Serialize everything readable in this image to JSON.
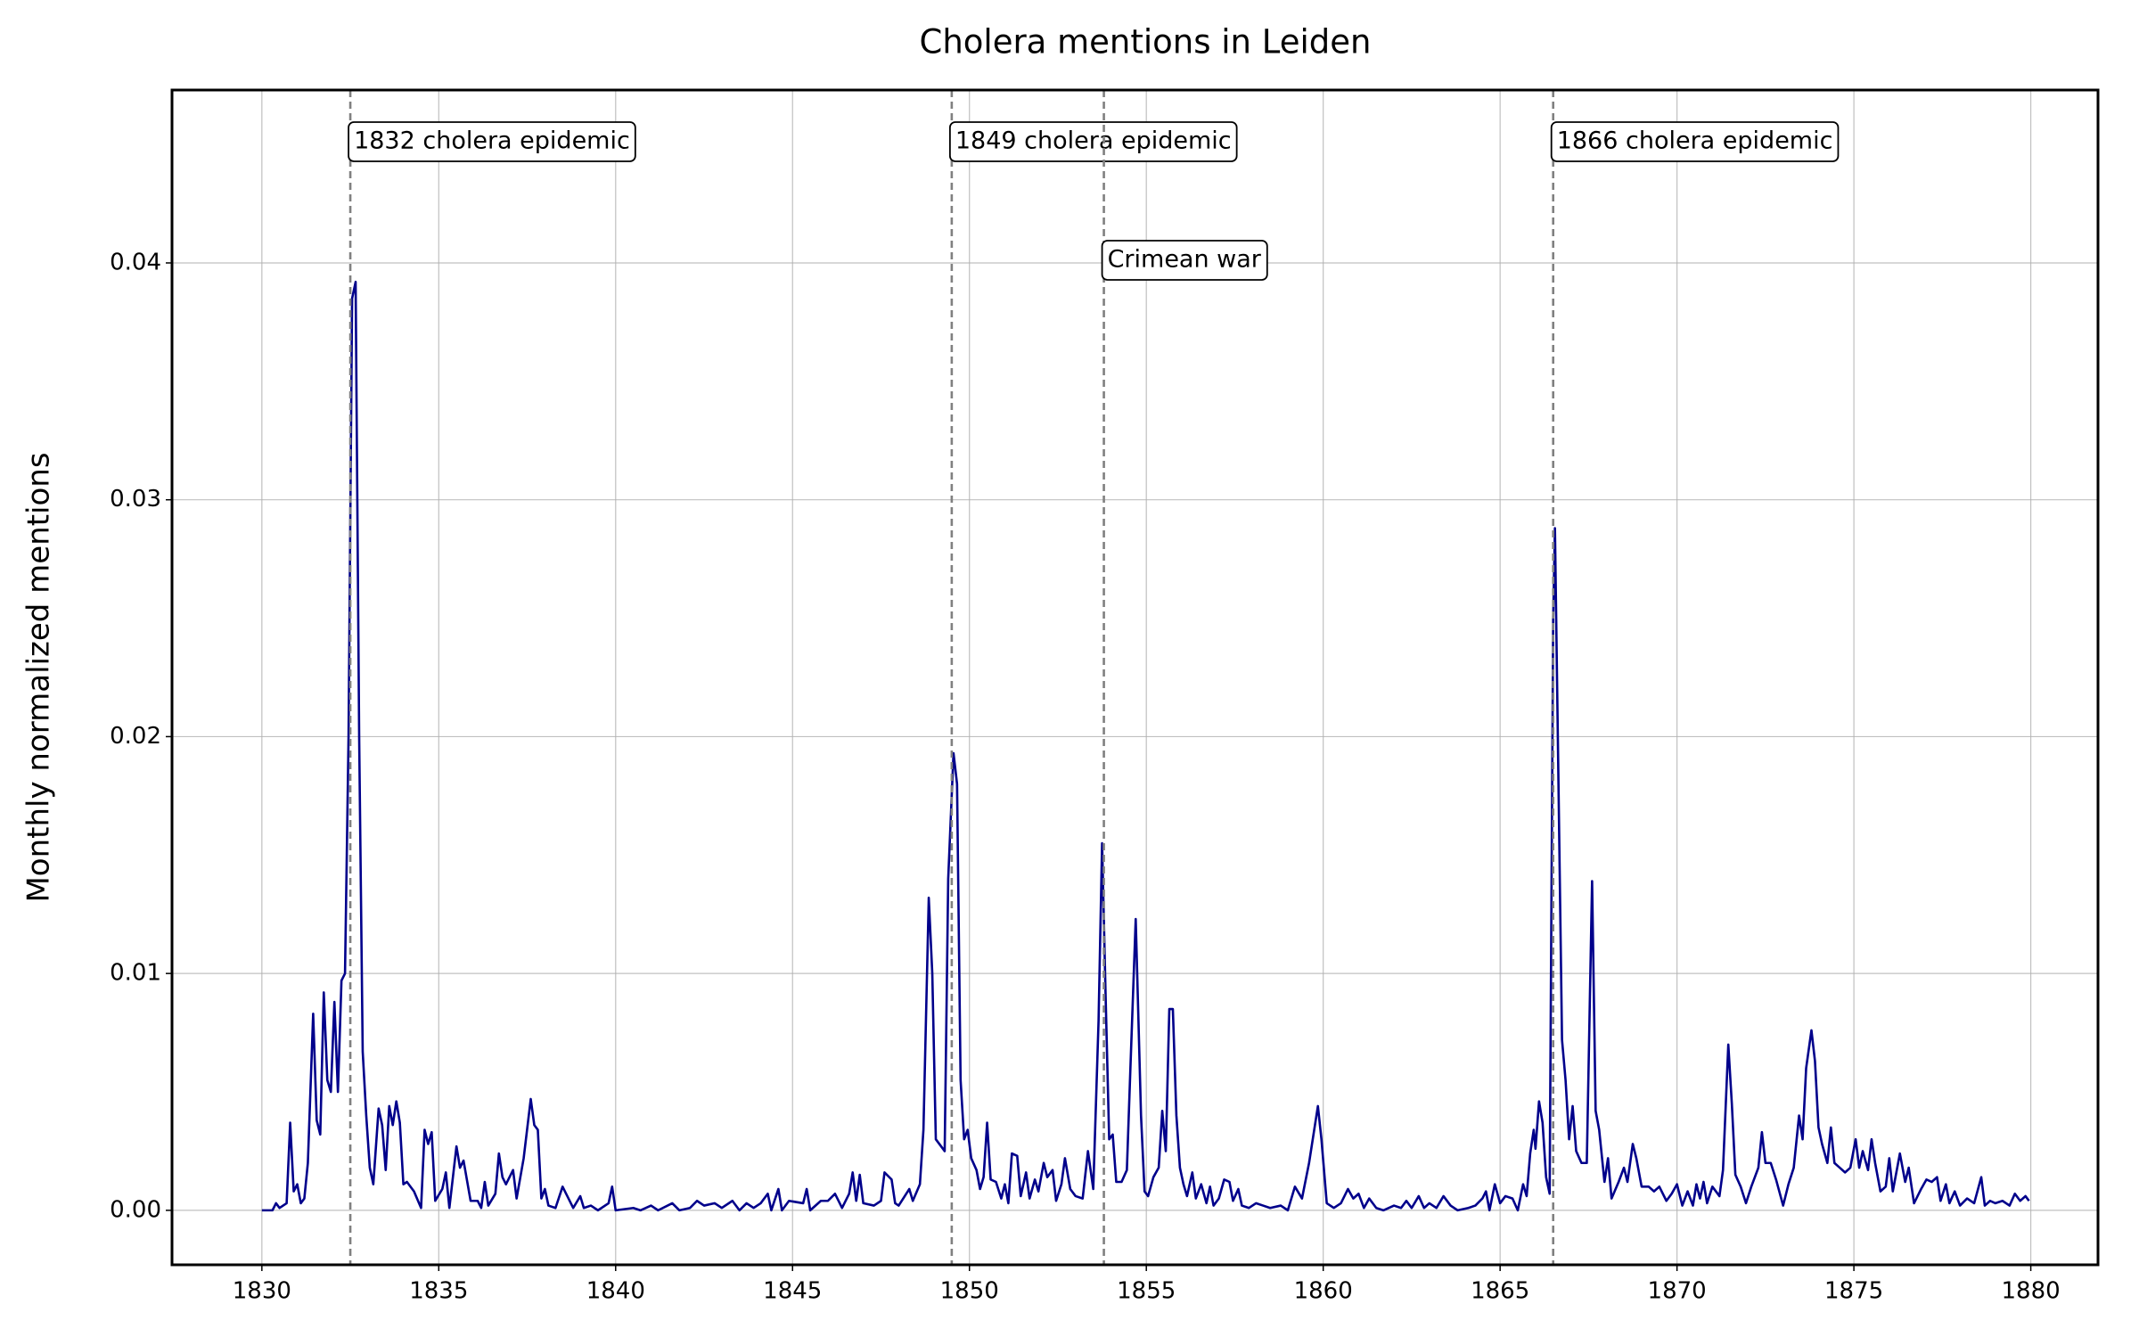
{
  "chart_data": {
    "type": "line",
    "title": "Cholera mentions in Leiden",
    "y_label": "Monthly normalized mentions",
    "xlim": [
      1827.46,
      1881.9
    ],
    "ylim": [
      -0.0023,
      0.0473
    ],
    "xticks": [
      1830,
      1835,
      1840,
      1845,
      1850,
      1855,
      1860,
      1865,
      1870,
      1875,
      1880
    ],
    "yticks": [
      {
        "value": 0,
        "label": "0.00"
      },
      {
        "value": 0.01,
        "label": "0.01"
      },
      {
        "value": 0.02,
        "label": "0.02"
      },
      {
        "value": 0.03,
        "label": "0.03"
      },
      {
        "value": 0.04,
        "label": "0.04"
      }
    ],
    "grid": true,
    "events": [
      {
        "x": 1832.5,
        "label": "1832 cholera epidemic"
      },
      {
        "x": 1849.5,
        "label": "1849 cholera epidemic"
      },
      {
        "x": 1853.8,
        "label": "Crimean war"
      },
      {
        "x": 1866.5,
        "label": "1866 cholera epidemic"
      }
    ],
    "series": [
      {
        "color": "#00008b",
        "x": [
          1830.0,
          1830.3,
          1830.4,
          1830.5,
          1830.7,
          1830.8,
          1830.9,
          1831.0,
          1831.1,
          1831.2,
          1831.3,
          1831.45,
          1831.55,
          1831.65,
          1831.75,
          1831.85,
          1831.95,
          1832.05,
          1832.15,
          1832.25,
          1832.35,
          1832.45,
          1832.55,
          1832.65,
          1832.75,
          1832.85,
          1832.95,
          1833.05,
          1833.15,
          1833.3,
          1833.4,
          1833.5,
          1833.6,
          1833.7,
          1833.8,
          1833.9,
          1834.0,
          1834.1,
          1834.3,
          1834.5,
          1834.6,
          1834.7,
          1834.8,
          1834.9,
          1835.1,
          1835.2,
          1835.3,
          1835.5,
          1835.6,
          1835.7,
          1835.9,
          1836.1,
          1836.2,
          1836.3,
          1836.4,
          1836.6,
          1836.7,
          1836.8,
          1836.9,
          1837.1,
          1837.2,
          1837.4,
          1837.6,
          1837.7,
          1837.8,
          1837.9,
          1838.0,
          1838.1,
          1838.3,
          1838.5,
          1838.6,
          1838.8,
          1839.0,
          1839.1,
          1839.3,
          1839.5,
          1839.8,
          1839.9,
          1840.0,
          1840.5,
          1840.7,
          1841.0,
          1841.2,
          1841.6,
          1841.8,
          1842.1,
          1842.3,
          1842.5,
          1842.8,
          1843.0,
          1843.3,
          1843.5,
          1843.7,
          1843.9,
          1844.1,
          1844.3,
          1844.4,
          1844.6,
          1844.7,
          1844.9,
          1845.3,
          1845.4,
          1845.5,
          1845.8,
          1846.0,
          1846.2,
          1846.4,
          1846.6,
          1846.7,
          1846.8,
          1846.9,
          1847.0,
          1847.3,
          1847.5,
          1847.6,
          1847.8,
          1847.9,
          1848.0,
          1848.3,
          1848.4,
          1848.6,
          1848.7,
          1848.85,
          1848.95,
          1849.05,
          1849.3,
          1849.4,
          1849.55,
          1849.65,
          1849.75,
          1849.85,
          1849.95,
          1850.05,
          1850.2,
          1850.3,
          1850.4,
          1850.5,
          1850.6,
          1850.75,
          1850.9,
          1851.0,
          1851.1,
          1851.2,
          1851.35,
          1851.45,
          1851.6,
          1851.7,
          1851.85,
          1851.95,
          1852.1,
          1852.2,
          1852.35,
          1852.45,
          1852.6,
          1852.7,
          1852.85,
          1853.0,
          1853.2,
          1853.35,
          1853.5,
          1853.65,
          1853.75,
          1853.85,
          1853.95,
          1854.05,
          1854.15,
          1854.3,
          1854.45,
          1854.55,
          1854.7,
          1854.85,
          1854.95,
          1855.05,
          1855.2,
          1855.35,
          1855.45,
          1855.55,
          1855.65,
          1855.75,
          1855.85,
          1855.95,
          1856.05,
          1856.15,
          1856.3,
          1856.4,
          1856.55,
          1856.7,
          1856.8,
          1856.9,
          1857.05,
          1857.2,
          1857.35,
          1857.45,
          1857.6,
          1857.7,
          1857.9,
          1858.1,
          1858.3,
          1858.5,
          1858.8,
          1859.0,
          1859.2,
          1859.4,
          1859.6,
          1859.85,
          1859.95,
          1860.1,
          1860.3,
          1860.5,
          1860.7,
          1860.85,
          1861.0,
          1861.15,
          1861.3,
          1861.5,
          1861.7,
          1862.0,
          1862.2,
          1862.35,
          1862.5,
          1862.7,
          1862.85,
          1863.0,
          1863.2,
          1863.4,
          1863.6,
          1863.8,
          1864.1,
          1864.3,
          1864.5,
          1864.6,
          1864.7,
          1864.85,
          1865.0,
          1865.15,
          1865.35,
          1865.5,
          1865.65,
          1865.75,
          1865.85,
          1865.95,
          1866.0,
          1866.1,
          1866.2,
          1866.3,
          1866.4,
          1866.5,
          1866.55,
          1866.65,
          1866.75,
          1866.85,
          1866.95,
          1867.05,
          1867.15,
          1867.3,
          1867.45,
          1867.6,
          1867.7,
          1867.8,
          1867.95,
          1868.05,
          1868.15,
          1868.35,
          1868.5,
          1868.6,
          1868.75,
          1868.85,
          1869.0,
          1869.2,
          1869.35,
          1869.5,
          1869.7,
          1869.85,
          1870.0,
          1870.15,
          1870.3,
          1870.45,
          1870.55,
          1870.65,
          1870.75,
          1870.85,
          1871.0,
          1871.2,
          1871.3,
          1871.45,
          1871.55,
          1871.65,
          1871.8,
          1871.95,
          1872.1,
          1872.3,
          1872.4,
          1872.5,
          1872.65,
          1872.8,
          1873.0,
          1873.15,
          1873.3,
          1873.45,
          1873.55,
          1873.65,
          1873.8,
          1873.9,
          1874.0,
          1874.1,
          1874.25,
          1874.35,
          1874.45,
          1874.6,
          1874.75,
          1874.9,
          1875.05,
          1875.15,
          1875.25,
          1875.4,
          1875.5,
          1875.6,
          1875.75,
          1875.9,
          1876.0,
          1876.1,
          1876.3,
          1876.45,
          1876.55,
          1876.7,
          1876.9,
          1877.05,
          1877.2,
          1877.35,
          1877.45,
          1877.6,
          1877.7,
          1877.85,
          1878.0,
          1878.2,
          1878.4,
          1878.6,
          1878.7,
          1878.85,
          1879.0,
          1879.2,
          1879.4,
          1879.55,
          1879.7,
          1879.85,
          1879.95
        ],
        "values": [
          0,
          0,
          0.0003,
          0.0001,
          0.0003,
          0.0037,
          0.0008,
          0.0011,
          0.0003,
          0.0005,
          0.002,
          0.0083,
          0.0038,
          0.0032,
          0.0092,
          0.0055,
          0.005,
          0.0088,
          0.005,
          0.0097,
          0.01,
          0.02,
          0.0385,
          0.0392,
          0.02,
          0.0067,
          0.004,
          0.0018,
          0.0011,
          0.0043,
          0.0036,
          0.0017,
          0.0044,
          0.0036,
          0.0046,
          0.0037,
          0.0011,
          0.0012,
          0.0008,
          0.0001,
          0.0034,
          0.0028,
          0.0033,
          0.0004,
          0.0009,
          0.0016,
          0.0001,
          0.0027,
          0.0018,
          0.0021,
          0.0004,
          0.0004,
          0.0001,
          0.0012,
          0.0002,
          0.0007,
          0.0024,
          0.0014,
          0.0011,
          0.0017,
          0.0005,
          0.0022,
          0.0047,
          0.0036,
          0.0034,
          0.0005,
          0.0009,
          0.0002,
          0.0001,
          0.001,
          0.0007,
          0.0001,
          0.0006,
          0.0001,
          0.0002,
          0,
          0.0003,
          0.001,
          0,
          0.0001,
          0,
          0.0002,
          0,
          0.0003,
          0,
          0.0001,
          0.0004,
          0.0002,
          0.0003,
          0.0001,
          0.0004,
          0,
          0.0003,
          0.0001,
          0.0003,
          0.0007,
          0,
          0.0009,
          0,
          0.0004,
          0.0003,
          0.0009,
          0,
          0.0004,
          0.0004,
          0.0007,
          0.0001,
          0.0007,
          0.0016,
          0.0004,
          0.0015,
          0.0003,
          0.0002,
          0.0004,
          0.0016,
          0.0013,
          0.0003,
          0.0002,
          0.0009,
          0.0004,
          0.0011,
          0.0034,
          0.0132,
          0.01,
          0.003,
          0.0025,
          0.014,
          0.0193,
          0.018,
          0.0055,
          0.003,
          0.0034,
          0.0022,
          0.0017,
          0.0009,
          0.0014,
          0.0037,
          0.0013,
          0.0012,
          0.0005,
          0.0011,
          0.0003,
          0.0024,
          0.0023,
          0.0006,
          0.0016,
          0.0005,
          0.0013,
          0.0008,
          0.002,
          0.0014,
          0.0017,
          0.0004,
          0.0011,
          0.0022,
          0.0009,
          0.0006,
          0.0005,
          0.0025,
          0.0009,
          0.008,
          0.0155,
          0.009,
          0.003,
          0.0032,
          0.0012,
          0.0012,
          0.0017,
          0.006,
          0.0123,
          0.004,
          0.0008,
          0.0006,
          0.0014,
          0.0018,
          0.0042,
          0.0025,
          0.0085,
          0.0085,
          0.004,
          0.0018,
          0.0011,
          0.0006,
          0.0016,
          0.0005,
          0.0011,
          0.0003,
          0.001,
          0.0002,
          0.0005,
          0.0013,
          0.0012,
          0.0004,
          0.0009,
          0.0002,
          0.0001,
          0.0003,
          0.0002,
          0.0001,
          0.0002,
          0,
          0.001,
          0.0005,
          0.002,
          0.0044,
          0.003,
          0.0003,
          0.0001,
          0.0003,
          0.0009,
          0.0005,
          0.0007,
          0.0001,
          0.0005,
          0.0001,
          0,
          0.0002,
          0.0001,
          0.0004,
          0.0001,
          0.0006,
          0.0001,
          0.0003,
          0.0001,
          0.0006,
          0.0002,
          0,
          0.0001,
          0.0002,
          0.0005,
          0.0008,
          0,
          0.0011,
          0.0003,
          0.0006,
          0.0005,
          0,
          0.0011,
          0.0006,
          0.0024,
          0.0034,
          0.0026,
          0.0046,
          0.0037,
          0.0014,
          0.0007,
          0.025,
          0.0288,
          0.018,
          0.0072,
          0.0055,
          0.003,
          0.0044,
          0.0025,
          0.002,
          0.002,
          0.0139,
          0.0042,
          0.0034,
          0.0012,
          0.0022,
          0.0005,
          0.0012,
          0.0018,
          0.0012,
          0.0028,
          0.0022,
          0.001,
          0.001,
          0.0008,
          0.001,
          0.0004,
          0.0007,
          0.0011,
          0.0002,
          0.0008,
          0.0002,
          0.0011,
          0.0005,
          0.0012,
          0.0003,
          0.001,
          0.0006,
          0.0017,
          0.007,
          0.0045,
          0.0015,
          0.001,
          0.0003,
          0.001,
          0.0018,
          0.0033,
          0.002,
          0.002,
          0.0013,
          0.0002,
          0.0011,
          0.0018,
          0.004,
          0.003,
          0.006,
          0.0076,
          0.0063,
          0.0035,
          0.0028,
          0.002,
          0.0035,
          0.002,
          0.0018,
          0.0016,
          0.0018,
          0.003,
          0.0018,
          0.0025,
          0.0017,
          0.003,
          0.002,
          0.0008,
          0.001,
          0.0022,
          0.0008,
          0.0024,
          0.0012,
          0.0018,
          0.0003,
          0.0009,
          0.0013,
          0.0012,
          0.0014,
          0.0004,
          0.0011,
          0.0003,
          0.0008,
          0.0002,
          0.0005,
          0.0003,
          0.0014,
          0.0002,
          0.0004,
          0.0003,
          0.0004,
          0.0002,
          0.0007,
          0.0004,
          0.0006,
          0.0004
        ]
      }
    ]
  }
}
